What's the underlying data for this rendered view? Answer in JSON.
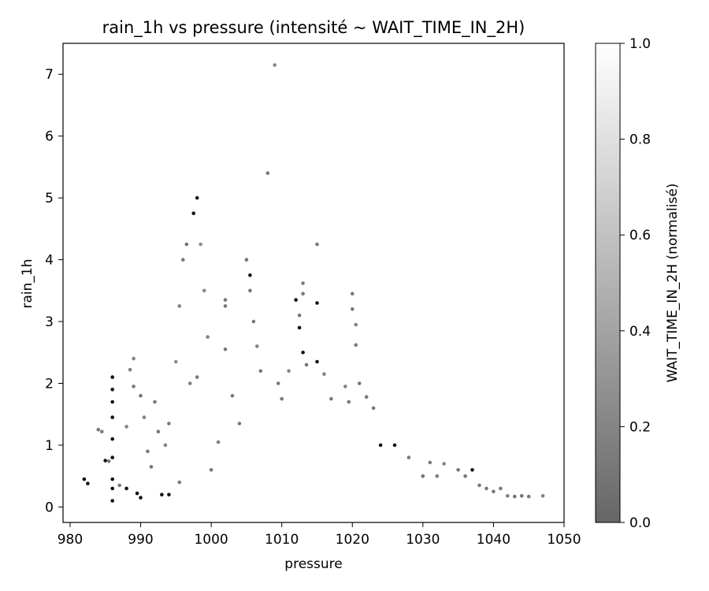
{
  "chart_data": {
    "type": "scatter",
    "title": "rain_1h vs pressure (intensité ~ WAIT_TIME_IN_2H)",
    "xlabel": "pressure",
    "ylabel": "rain_1h",
    "xlim": [
      979,
      1050
    ],
    "ylim": [
      -0.25,
      7.5
    ],
    "xticks": [
      "980",
      "990",
      "1000",
      "1010",
      "1020",
      "1030",
      "1040",
      "1050"
    ],
    "yticks": [
      "0",
      "1",
      "2",
      "3",
      "4",
      "5",
      "6",
      "7"
    ],
    "grid": false,
    "colorbar": {
      "label": "WAIT_TIME_IN_2H (normalisé)",
      "range": [
        0,
        1
      ],
      "ticks": [
        "0.0",
        "0.2",
        "0.4",
        "0.6",
        "0.8",
        "1.0"
      ],
      "colormap": "gray"
    },
    "points": [
      [
        982,
        0.45,
        0.1
      ],
      [
        982.5,
        0.38,
        0.1
      ],
      [
        984,
        1.25,
        0.2
      ],
      [
        984.5,
        1.22,
        0.25
      ],
      [
        985,
        0.75,
        0.1
      ],
      [
        985.5,
        0.74,
        0.2
      ],
      [
        986,
        2.1,
        0.1
      ],
      [
        986,
        1.9,
        0.1
      ],
      [
        986,
        1.7,
        0.1
      ],
      [
        986,
        1.45,
        0.1
      ],
      [
        986,
        1.1,
        0.1
      ],
      [
        986,
        0.8,
        0.1
      ],
      [
        986,
        0.45,
        0.1
      ],
      [
        986,
        0.3,
        0.1
      ],
      [
        986,
        0.1,
        0.1
      ],
      [
        987,
        0.35,
        0.2
      ],
      [
        988,
        0.3,
        0.1
      ],
      [
        988,
        1.3,
        0.3
      ],
      [
        988.5,
        2.22,
        0.3
      ],
      [
        989,
        2.4,
        0.35
      ],
      [
        989,
        1.95,
        0.2
      ],
      [
        989.5,
        0.22,
        0.1
      ],
      [
        990,
        1.8,
        0.15
      ],
      [
        990,
        0.15,
        0.1
      ],
      [
        990.5,
        1.45,
        0.3
      ],
      [
        991,
        0.9,
        0.2
      ],
      [
        991.5,
        0.65,
        0.15
      ],
      [
        992,
        1.7,
        0.2
      ],
      [
        992.5,
        1.22,
        0.2
      ],
      [
        993,
        0.2,
        0.1
      ],
      [
        993.5,
        1.0,
        0.3
      ],
      [
        994,
        1.35,
        0.2
      ],
      [
        994,
        0.2,
        0.1
      ],
      [
        995,
        2.35,
        0.4
      ],
      [
        995.5,
        3.25,
        0.3
      ],
      [
        995.5,
        0.4,
        0.2
      ],
      [
        996,
        4.0,
        0.2
      ],
      [
        996.5,
        4.25,
        0.15
      ],
      [
        997,
        2.0,
        0.3
      ],
      [
        997.5,
        4.75,
        0.1
      ],
      [
        998,
        5.0,
        0.1
      ],
      [
        998,
        2.1,
        0.2
      ],
      [
        998.5,
        4.25,
        0.4
      ],
      [
        999,
        3.5,
        0.35
      ],
      [
        999.5,
        2.75,
        0.3
      ],
      [
        1000,
        0.6,
        0.2
      ],
      [
        1001,
        1.05,
        0.25
      ],
      [
        1002,
        3.35,
        0.2
      ],
      [
        1002,
        3.25,
        0.2
      ],
      [
        1002,
        2.55,
        0.2
      ],
      [
        1003,
        1.8,
        0.2
      ],
      [
        1004,
        1.35,
        0.2
      ],
      [
        1005,
        4.0,
        0.15
      ],
      [
        1005.5,
        3.75,
        0.1
      ],
      [
        1005.5,
        3.5,
        0.15
      ],
      [
        1006,
        3.0,
        0.2
      ],
      [
        1006.5,
        2.6,
        0.3
      ],
      [
        1007,
        2.2,
        0.2
      ],
      [
        1008,
        5.4,
        0.2
      ],
      [
        1009,
        7.15,
        0.35
      ],
      [
        1009.5,
        2.0,
        0.2
      ],
      [
        1010,
        1.75,
        0.2
      ],
      [
        1011,
        2.2,
        0.3
      ],
      [
        1012,
        3.35,
        0.1
      ],
      [
        1012.5,
        2.9,
        0.1
      ],
      [
        1012.5,
        3.1,
        0.2
      ],
      [
        1013,
        3.62,
        0.2
      ],
      [
        1013,
        3.45,
        0.2
      ],
      [
        1013,
        2.5,
        0.1
      ],
      [
        1013.5,
        2.3,
        0.2
      ],
      [
        1015,
        4.25,
        0.2
      ],
      [
        1015,
        3.3,
        0.1
      ],
      [
        1015,
        2.35,
        0.1
      ],
      [
        1016,
        2.15,
        0.3
      ],
      [
        1017,
        1.75,
        0.2
      ],
      [
        1019,
        1.95,
        0.3
      ],
      [
        1019.5,
        1.7,
        0.2
      ],
      [
        1020,
        3.45,
        0.2
      ],
      [
        1020,
        3.2,
        0.2
      ],
      [
        1020.5,
        2.95,
        0.3
      ],
      [
        1020.5,
        2.62,
        0.2
      ],
      [
        1021,
        2.0,
        0.2
      ],
      [
        1022,
        1.78,
        0.2
      ],
      [
        1023,
        1.6,
        0.2
      ],
      [
        1024,
        1.0,
        0.1
      ],
      [
        1026,
        1.0,
        0.1
      ],
      [
        1028,
        0.8,
        0.2
      ],
      [
        1030,
        0.5,
        0.15
      ],
      [
        1031,
        0.72,
        0.2
      ],
      [
        1032,
        0.5,
        0.25
      ],
      [
        1033,
        0.7,
        0.3
      ],
      [
        1035,
        0.6,
        0.2
      ],
      [
        1036,
        0.5,
        0.2
      ],
      [
        1037,
        0.6,
        0.1
      ],
      [
        1038,
        0.35,
        0.2
      ],
      [
        1039,
        0.3,
        0.2
      ],
      [
        1040,
        0.25,
        0.2
      ],
      [
        1041,
        0.3,
        0.2
      ],
      [
        1042,
        0.18,
        0.3
      ],
      [
        1043,
        0.17,
        0.15
      ],
      [
        1044,
        0.18,
        0.15
      ],
      [
        1045,
        0.17,
        0.2
      ],
      [
        1047,
        0.18,
        0.3
      ]
    ]
  }
}
